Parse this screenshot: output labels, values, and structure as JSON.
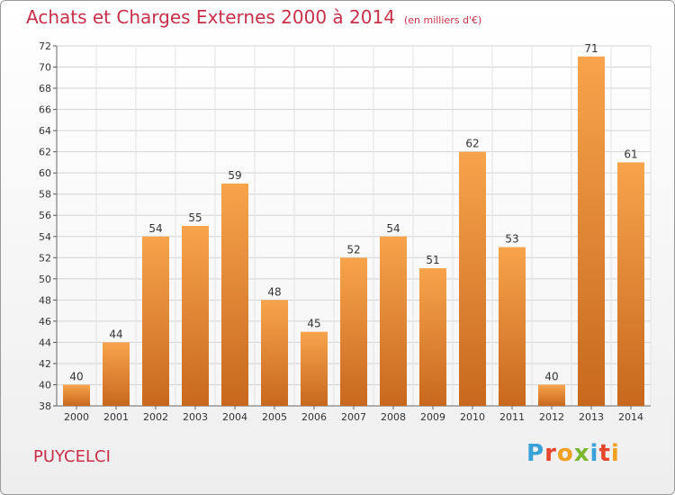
{
  "header": {
    "title": "Achats et Charges Externes 2000 à 2014",
    "unit": "(en milliers d'€)"
  },
  "footer": {
    "commune": "PUYCELCI",
    "logo": "Proxiti"
  },
  "colors": {
    "bar_top": "#f7a44c",
    "bar_bottom": "#c8681e",
    "title": "#c8304a"
  },
  "chart_data": {
    "type": "bar",
    "categories": [
      "2000",
      "2001",
      "2002",
      "2003",
      "2004",
      "2005",
      "2006",
      "2007",
      "2008",
      "2009",
      "2010",
      "2011",
      "2012",
      "2013",
      "2014"
    ],
    "values": [
      40,
      44,
      54,
      55,
      59,
      48,
      45,
      52,
      54,
      51,
      62,
      53,
      40,
      71,
      61
    ],
    "title": "Achats et Charges Externes 2000 à 2014",
    "ylim": [
      38,
      72
    ],
    "yticks": [
      38,
      40,
      42,
      44,
      46,
      48,
      50,
      52,
      54,
      56,
      58,
      60,
      62,
      64,
      66,
      68,
      70,
      72
    ],
    "grid": true,
    "legend": "none"
  }
}
